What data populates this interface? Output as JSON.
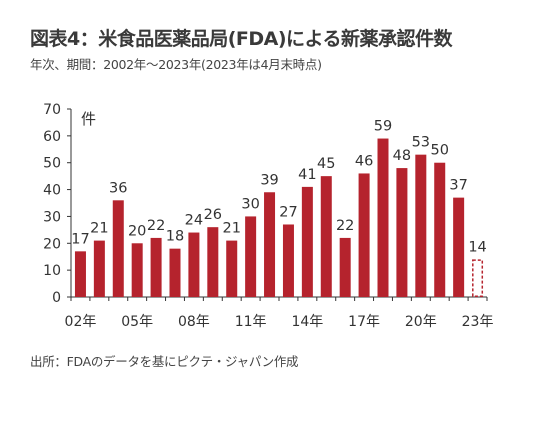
{
  "title": "図表4：米食品医薬品局(FDA)による新薬承認件数",
  "subtitle": "年次、期間：2002年～2023年(2023年は4月末時点)",
  "source": "出所：FDAのデータを基にピクテ・ジャパン作成",
  "colors": {
    "bar": "#b5232d",
    "axis": "#333333",
    "text": "#333333"
  },
  "chart_data": {
    "type": "bar",
    "title": "図表4：米食品医薬品局(FDA)による新薬承認件数",
    "ylabel": "件",
    "xlabel": "",
    "ylim": [
      0,
      70
    ],
    "yticks": [
      0,
      10,
      20,
      30,
      40,
      50,
      60,
      70
    ],
    "grid": false,
    "categories": [
      "2002",
      "2003",
      "2004",
      "2005",
      "2006",
      "2007",
      "2008",
      "2009",
      "2010",
      "2011",
      "2012",
      "2013",
      "2014",
      "2015",
      "2016",
      "2017",
      "2018",
      "2019",
      "2020",
      "2021",
      "2022",
      "2023"
    ],
    "values": [
      17,
      21,
      36,
      20,
      22,
      18,
      24,
      26,
      21,
      30,
      39,
      27,
      41,
      45,
      22,
      46,
      59,
      48,
      53,
      50,
      37,
      14
    ],
    "data_labels": [
      "17",
      "21",
      "36",
      "20",
      "22",
      "18",
      "24",
      "26",
      "21",
      "30",
      "39",
      "27",
      "41",
      "45",
      "22",
      "46",
      "59",
      "48",
      "53",
      "50",
      "37",
      "14"
    ],
    "partial_last": true,
    "xtick_labels": [
      {
        "index": 0,
        "label": "02年"
      },
      {
        "index": 3,
        "label": "05年"
      },
      {
        "index": 6,
        "label": "08年"
      },
      {
        "index": 9,
        "label": "11年"
      },
      {
        "index": 12,
        "label": "14年"
      },
      {
        "index": 15,
        "label": "17年"
      },
      {
        "index": 18,
        "label": "20年"
      },
      {
        "index": 21,
        "label": "23年"
      }
    ]
  }
}
